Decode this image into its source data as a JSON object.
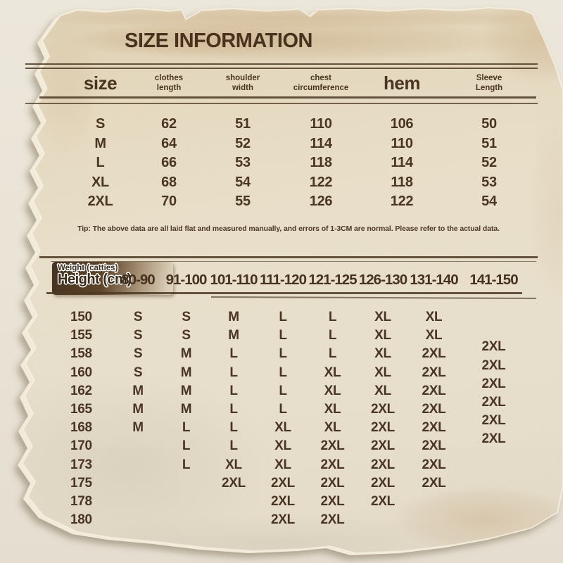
{
  "title": "SIZE INFORMATION",
  "tip": "Tip: The above data are all laid flat and measured manually, and errors of 1-3CM are normal. Please refer to the actual data.",
  "colors": {
    "ink": "#4a3522",
    "paper": "#e7dcc3",
    "background": "#e9e3d5",
    "chip_dark": "#3f2e1d",
    "rule_line": "#4e3a25"
  },
  "size_table": {
    "headers": [
      {
        "line1": "size",
        "line2": "",
        "big": true
      },
      {
        "line1": "clothes",
        "line2": "length",
        "big": false
      },
      {
        "line1": "shoulder",
        "line2": "width",
        "big": false
      },
      {
        "line1": "chest",
        "line2": "circumference",
        "big": false
      },
      {
        "line1": "hem",
        "line2": "",
        "big": true
      },
      {
        "line1": "Sleeve",
        "line2": "Length",
        "big": false
      }
    ],
    "rows": [
      [
        "S",
        "62",
        "51",
        "110",
        "106",
        "50"
      ],
      [
        "M",
        "64",
        "52",
        "114",
        "110",
        "51"
      ],
      [
        "L",
        "66",
        "53",
        "118",
        "114",
        "52"
      ],
      [
        "XL",
        "68",
        "54",
        "122",
        "118",
        "53"
      ],
      [
        "2XL",
        "70",
        "55",
        "126",
        "122",
        "54"
      ]
    ]
  },
  "fit_table": {
    "corner": {
      "top": "Weight (catties)",
      "bottom": "Height (cm)"
    },
    "weight_columns": [
      "80-90",
      "91-100",
      "101-110",
      "111-120",
      "121-125",
      "126-130",
      "131-140",
      "141-150"
    ],
    "rows": [
      {
        "height": "150",
        "sizes": [
          "S",
          "S",
          "M",
          "L",
          "L",
          "XL",
          "XL",
          ""
        ]
      },
      {
        "height": "155",
        "sizes": [
          "S",
          "S",
          "M",
          "L",
          "L",
          "XL",
          "XL",
          ""
        ]
      },
      {
        "height": "158",
        "sizes": [
          "S",
          "M",
          "L",
          "L",
          "L",
          "XL",
          "2XL",
          "2XL"
        ]
      },
      {
        "height": "160",
        "sizes": [
          "S",
          "M",
          "L",
          "L",
          "XL",
          "XL",
          "2XL",
          "2XL"
        ]
      },
      {
        "height": "162",
        "sizes": [
          "M",
          "M",
          "L",
          "L",
          "XL",
          "XL",
          "2XL",
          "2XL"
        ]
      },
      {
        "height": "165",
        "sizes": [
          "M",
          "M",
          "L",
          "L",
          "XL",
          "2XL",
          "2XL",
          "2XL"
        ]
      },
      {
        "height": "168",
        "sizes": [
          "M",
          "L",
          "L",
          "XL",
          "XL",
          "2XL",
          "2XL",
          "2XL"
        ]
      },
      {
        "height": "170",
        "sizes": [
          "",
          "L",
          "L",
          "XL",
          "2XL",
          "2XL",
          "2XL",
          "2XL"
        ]
      },
      {
        "height": "173",
        "sizes": [
          "",
          "L",
          "XL",
          "XL",
          "2XL",
          "2XL",
          "2XL",
          ""
        ]
      },
      {
        "height": "175",
        "sizes": [
          "",
          "",
          "2XL",
          "2XL",
          "2XL",
          "2XL",
          "2XL",
          ""
        ]
      },
      {
        "height": "178",
        "sizes": [
          "",
          "",
          "",
          "2XL",
          "2XL",
          "2XL",
          "",
          ""
        ]
      },
      {
        "height": "180",
        "sizes": [
          "",
          "",
          "",
          "2XL",
          "2XL",
          "",
          "",
          ""
        ]
      }
    ]
  }
}
